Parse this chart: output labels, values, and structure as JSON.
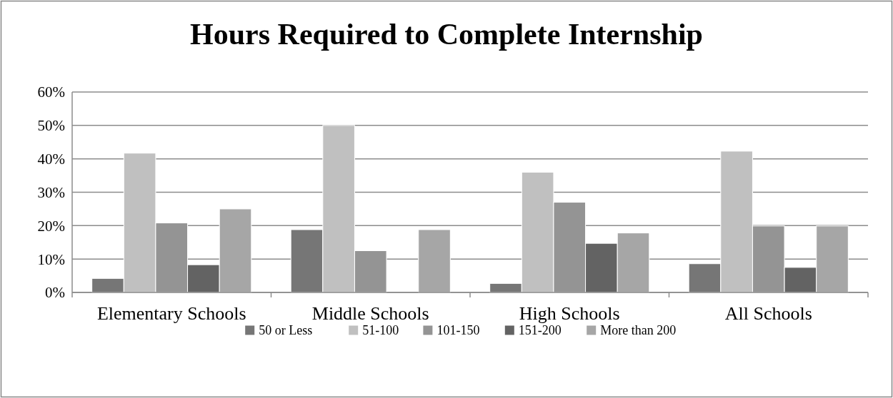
{
  "chart_data": {
    "type": "bar",
    "title": "Hours Required to Complete Internship",
    "categories": [
      "Elementary Schools",
      "Middle Schools",
      "High Schools",
      "All Schools"
    ],
    "series": [
      {
        "name": "50 or Less",
        "color": "#767676",
        "values": [
          4.2,
          18.8,
          2.7,
          8.6
        ]
      },
      {
        "name": "51-100",
        "color": "#c0c0c0",
        "values": [
          41.7,
          50,
          36,
          42.3
        ]
      },
      {
        "name": "101-150",
        "color": "#949494",
        "values": [
          20.8,
          12.5,
          27,
          19.9
        ]
      },
      {
        "name": "151-200",
        "color": "#636363",
        "values": [
          8.3,
          0,
          14.7,
          7.5
        ]
      },
      {
        "name": "More than 200",
        "color": "#a6a6a6",
        "values": [
          25,
          18.8,
          17.8,
          19.9
        ]
      }
    ],
    "ylim": [
      0,
      60
    ],
    "yticks": [
      {
        "value": 0,
        "label": "0%"
      },
      {
        "value": 10,
        "label": "10%"
      },
      {
        "value": 20,
        "label": "20%"
      },
      {
        "value": 30,
        "label": "30%"
      },
      {
        "value": 40,
        "label": "40%"
      },
      {
        "value": 50,
        "label": "50%"
      },
      {
        "value": 60,
        "label": "60%"
      }
    ],
    "grid": "y",
    "legend": "bottom"
  }
}
